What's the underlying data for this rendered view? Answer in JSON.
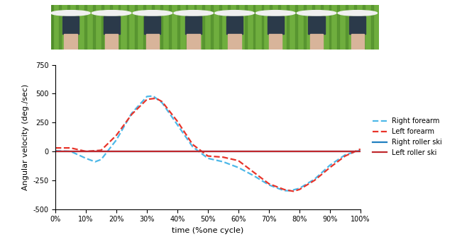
{
  "chart_data": {
    "type": "line",
    "x_label": "time (%one cycle)",
    "y_label": "Angular velocity (deg./sec)",
    "xlim": [
      0,
      100
    ],
    "xticks": [
      {
        "value": 0,
        "label": "0%"
      },
      {
        "value": 10,
        "label": "10%"
      },
      {
        "value": 20,
        "label": "20%"
      },
      {
        "value": 30,
        "label": "30%"
      },
      {
        "value": 40,
        "label": "40%"
      },
      {
        "value": 50,
        "label": "50%"
      },
      {
        "value": 60,
        "label": "60%"
      },
      {
        "value": 70,
        "label": "70%"
      },
      {
        "value": 80,
        "label": "80%"
      },
      {
        "value": 90,
        "label": "90%"
      },
      {
        "value": 100,
        "label": "100%"
      }
    ],
    "ylim": [
      -500,
      750
    ],
    "yticks": [
      -500,
      -250,
      0,
      250,
      500,
      750
    ],
    "grid": false,
    "legend": "center left",
    "series": [
      {
        "name": "Right forearm",
        "color": "#4db8e8",
        "line_style": "dashed",
        "x": [
          0,
          5,
          10,
          13,
          15,
          20,
          25,
          30,
          32,
          35,
          40,
          45,
          50,
          55,
          60,
          65,
          70,
          75,
          77,
          80,
          85,
          90,
          95,
          100
        ],
        "values": [
          5,
          0,
          -60,
          -90,
          -70,
          100,
          330,
          475,
          480,
          420,
          230,
          40,
          -60,
          -90,
          -140,
          -210,
          -290,
          -340,
          -340,
          -320,
          -240,
          -120,
          -30,
          10
        ]
      },
      {
        "name": "Left forearm",
        "color": "#e8342a",
        "line_style": "dashed",
        "x": [
          0,
          5,
          10,
          15,
          20,
          25,
          30,
          33,
          35,
          40,
          45,
          50,
          55,
          60,
          65,
          70,
          75,
          78,
          80,
          85,
          90,
          95,
          100
        ],
        "values": [
          30,
          30,
          0,
          10,
          140,
          320,
          450,
          460,
          430,
          260,
          60,
          -40,
          -50,
          -80,
          -180,
          -280,
          -330,
          -345,
          -330,
          -250,
          -140,
          -40,
          20
        ]
      },
      {
        "name": "Right roller ski",
        "color": "#1f7fc0",
        "line_style": "solid",
        "x": [
          0,
          25,
          50,
          75,
          100
        ],
        "values": [
          0,
          0,
          0,
          0,
          0
        ]
      },
      {
        "name": "Left roller ski",
        "color": "#c0282d",
        "line_style": "solid",
        "x": [
          0,
          25,
          50,
          75,
          100
        ],
        "values": [
          2,
          2,
          2,
          2,
          2
        ]
      }
    ]
  }
}
